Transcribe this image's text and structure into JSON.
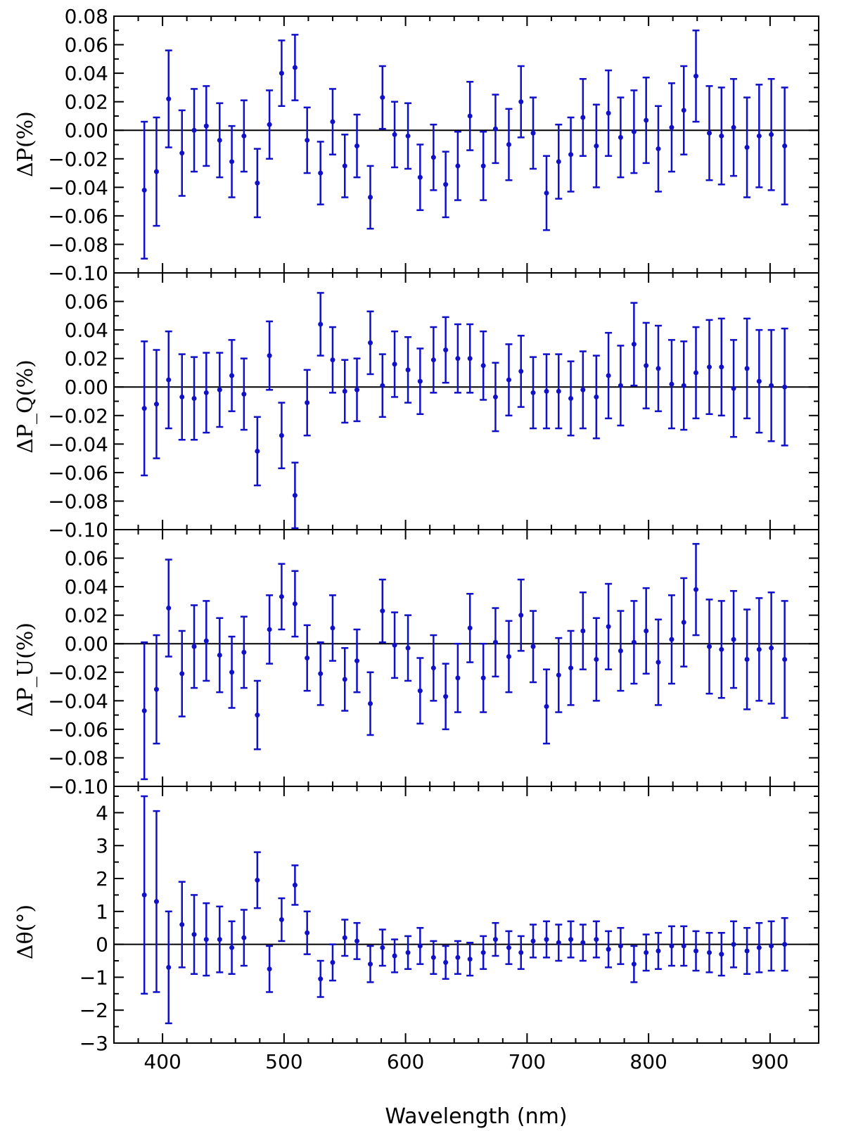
{
  "chart_data": [
    {
      "type": "scatter",
      "panel": "dP",
      "ylabel": "ΔP(%)",
      "xlabel": "",
      "xlim": [
        360,
        940
      ],
      "ylim": [
        -0.1,
        0.08
      ],
      "yticks": [
        -0.1,
        -0.08,
        -0.06,
        -0.04,
        -0.02,
        0.0,
        0.02,
        0.04,
        0.06,
        0.08
      ],
      "ytick_labels": [
        "−0.10",
        "−0.08",
        "−0.06",
        "−0.04",
        "−0.02",
        "0.00",
        "0.02",
        "0.04",
        "0.06",
        "0.08"
      ],
      "zero_line": true,
      "color": "#1010c8",
      "x": [
        385,
        395,
        405,
        416,
        426,
        436,
        447,
        457,
        467,
        478,
        488,
        498,
        509,
        519,
        530,
        540,
        550,
        560,
        571,
        581,
        591,
        602,
        612,
        623,
        633,
        643,
        653,
        664,
        674,
        685,
        695,
        705,
        716,
        726,
        736,
        746,
        757,
        767,
        777,
        788,
        798,
        808,
        819,
        829,
        839,
        850,
        860,
        870,
        881,
        891,
        901,
        912
      ],
      "y": [
        -0.042,
        -0.029,
        0.022,
        -0.016,
        0.0,
        0.003,
        -0.007,
        -0.022,
        -0.004,
        -0.037,
        0.004,
        0.04,
        0.044,
        -0.007,
        -0.03,
        0.006,
        -0.025,
        -0.011,
        -0.047,
        0.023,
        -0.003,
        -0.004,
        -0.033,
        -0.019,
        -0.038,
        -0.025,
        0.01,
        -0.025,
        0.001,
        -0.01,
        0.02,
        -0.002,
        -0.044,
        -0.022,
        -0.017,
        0.009,
        -0.011,
        0.012,
        -0.005,
        -0.001,
        0.007,
        -0.013,
        0.002,
        0.014,
        0.038,
        -0.002,
        -0.004,
        0.002,
        -0.012,
        -0.004,
        -0.003,
        -0.011
      ],
      "yerr": [
        0.048,
        0.038,
        0.034,
        0.03,
        0.029,
        0.028,
        0.026,
        0.025,
        0.025,
        0.024,
        0.024,
        0.023,
        0.023,
        0.023,
        0.022,
        0.023,
        0.022,
        0.022,
        0.022,
        0.022,
        0.023,
        0.023,
        0.023,
        0.023,
        0.023,
        0.024,
        0.024,
        0.024,
        0.024,
        0.025,
        0.025,
        0.025,
        0.026,
        0.026,
        0.026,
        0.027,
        0.029,
        0.03,
        0.028,
        0.029,
        0.03,
        0.03,
        0.031,
        0.031,
        0.032,
        0.033,
        0.034,
        0.034,
        0.035,
        0.036,
        0.039,
        0.041
      ]
    },
    {
      "type": "scatter",
      "panel": "dPQ",
      "ylabel": "ΔP_Q(%)",
      "xlabel": "",
      "xlim": [
        360,
        940
      ],
      "ylim": [
        -0.1,
        0.08
      ],
      "yticks": [
        -0.1,
        -0.08,
        -0.06,
        -0.04,
        -0.02,
        0.0,
        0.02,
        0.04,
        0.06
      ],
      "ytick_labels": [
        "−0.10",
        "−0.08",
        "−0.06",
        "−0.04",
        "−0.02",
        "0.00",
        "0.02",
        "0.04",
        "0.06"
      ],
      "zero_line": true,
      "color": "#1010c8",
      "x": [
        385,
        395,
        405,
        416,
        426,
        436,
        447,
        457,
        467,
        478,
        488,
        498,
        509,
        519,
        530,
        540,
        550,
        560,
        571,
        581,
        591,
        602,
        612,
        623,
        633,
        643,
        653,
        664,
        674,
        685,
        695,
        705,
        716,
        726,
        736,
        746,
        757,
        767,
        777,
        788,
        798,
        808,
        819,
        829,
        839,
        850,
        860,
        870,
        881,
        891,
        901,
        912
      ],
      "y": [
        -0.015,
        -0.012,
        0.005,
        -0.007,
        -0.008,
        -0.004,
        -0.002,
        0.008,
        -0.005,
        -0.045,
        0.022,
        -0.034,
        -0.076,
        -0.011,
        0.044,
        0.019,
        -0.003,
        -0.002,
        0.031,
        0.001,
        0.016,
        0.012,
        0.004,
        0.019,
        0.026,
        0.02,
        0.02,
        0.015,
        -0.007,
        0.005,
        0.011,
        -0.004,
        -0.003,
        -0.003,
        -0.008,
        -0.002,
        -0.007,
        0.008,
        0.001,
        0.03,
        0.015,
        0.013,
        0.002,
        0.001,
        0.01,
        0.014,
        0.014,
        -0.001,
        0.013,
        0.004,
        0.001,
        0.0
      ],
      "yerr": [
        0.047,
        0.038,
        0.034,
        0.03,
        0.029,
        0.028,
        0.026,
        0.025,
        0.025,
        0.024,
        0.024,
        0.023,
        0.023,
        0.023,
        0.022,
        0.023,
        0.022,
        0.022,
        0.022,
        0.022,
        0.023,
        0.023,
        0.023,
        0.023,
        0.023,
        0.024,
        0.024,
        0.024,
        0.024,
        0.025,
        0.025,
        0.025,
        0.026,
        0.026,
        0.026,
        0.027,
        0.029,
        0.03,
        0.028,
        0.029,
        0.03,
        0.03,
        0.031,
        0.031,
        0.032,
        0.033,
        0.034,
        0.034,
        0.035,
        0.036,
        0.039,
        0.041
      ]
    },
    {
      "type": "scatter",
      "panel": "dPU",
      "ylabel": "ΔP_U(%)",
      "xlabel": "",
      "xlim": [
        360,
        940
      ],
      "ylim": [
        -0.1,
        0.08
      ],
      "yticks": [
        -0.1,
        -0.08,
        -0.06,
        -0.04,
        -0.02,
        0.0,
        0.02,
        0.04,
        0.06
      ],
      "ytick_labels": [
        "−0.10",
        "−0.08",
        "−0.06",
        "−0.04",
        "−0.02",
        "0.00",
        "0.02",
        "0.04",
        "0.06"
      ],
      "zero_line": true,
      "color": "#1010c8",
      "x": [
        385,
        395,
        405,
        416,
        426,
        436,
        447,
        457,
        467,
        478,
        488,
        498,
        509,
        519,
        530,
        540,
        550,
        560,
        571,
        581,
        591,
        602,
        612,
        623,
        633,
        643,
        653,
        664,
        674,
        685,
        695,
        705,
        716,
        726,
        736,
        746,
        757,
        767,
        777,
        788,
        798,
        808,
        819,
        829,
        839,
        850,
        860,
        870,
        881,
        891,
        901,
        912
      ],
      "y": [
        -0.047,
        -0.032,
        0.025,
        -0.021,
        -0.002,
        0.002,
        -0.008,
        -0.02,
        -0.006,
        -0.05,
        0.01,
        0.033,
        0.028,
        -0.01,
        -0.021,
        0.011,
        -0.025,
        -0.012,
        -0.042,
        0.023,
        -0.001,
        -0.003,
        -0.033,
        -0.017,
        -0.037,
        -0.024,
        0.011,
        -0.024,
        0.001,
        -0.009,
        0.02,
        -0.002,
        -0.044,
        -0.022,
        -0.017,
        0.009,
        -0.011,
        0.012,
        -0.005,
        0.001,
        0.009,
        -0.013,
        0.003,
        0.015,
        0.038,
        -0.002,
        -0.004,
        0.003,
        -0.011,
        -0.004,
        -0.003,
        -0.011
      ],
      "yerr": [
        0.048,
        0.038,
        0.034,
        0.03,
        0.029,
        0.028,
        0.026,
        0.025,
        0.025,
        0.024,
        0.024,
        0.023,
        0.023,
        0.023,
        0.022,
        0.023,
        0.022,
        0.022,
        0.022,
        0.022,
        0.023,
        0.023,
        0.023,
        0.023,
        0.023,
        0.024,
        0.024,
        0.024,
        0.024,
        0.025,
        0.025,
        0.025,
        0.026,
        0.026,
        0.026,
        0.027,
        0.029,
        0.03,
        0.028,
        0.029,
        0.03,
        0.03,
        0.031,
        0.031,
        0.032,
        0.033,
        0.034,
        0.034,
        0.035,
        0.036,
        0.039,
        0.041
      ]
    },
    {
      "type": "scatter",
      "panel": "dTheta",
      "ylabel": "Δθ(°)",
      "xlabel": "Wavelength (nm)",
      "xlim": [
        360,
        940
      ],
      "ylim": [
        -3,
        4.8
      ],
      "yticks": [
        -3,
        -2,
        -1,
        0,
        1,
        2,
        3,
        4
      ],
      "ytick_labels": [
        "−3",
        "−2",
        "−1",
        "0",
        "1",
        "2",
        "3",
        "4"
      ],
      "xticks": [
        400,
        500,
        600,
        700,
        800,
        900
      ],
      "xtick_labels": [
        "400",
        "500",
        "600",
        "700",
        "800",
        "900"
      ],
      "zero_line": true,
      "color": "#1010c8",
      "x": [
        385,
        395,
        405,
        416,
        426,
        436,
        447,
        457,
        467,
        478,
        488,
        498,
        509,
        519,
        530,
        540,
        550,
        560,
        571,
        581,
        591,
        602,
        612,
        623,
        633,
        643,
        653,
        664,
        674,
        685,
        695,
        705,
        716,
        726,
        736,
        746,
        757,
        767,
        777,
        788,
        798,
        808,
        819,
        829,
        839,
        850,
        860,
        870,
        881,
        891,
        901,
        912
      ],
      "y": [
        1.5,
        1.3,
        -0.7,
        0.6,
        0.3,
        0.15,
        0.15,
        -0.1,
        0.2,
        1.95,
        -0.75,
        0.75,
        1.8,
        0.35,
        -1.05,
        -0.55,
        0.2,
        0.1,
        -0.6,
        -0.1,
        -0.35,
        -0.25,
        -0.05,
        -0.4,
        -0.55,
        -0.4,
        -0.45,
        -0.25,
        0.15,
        -0.1,
        -0.25,
        0.1,
        0.15,
        0.05,
        0.15,
        0.05,
        0.15,
        -0.15,
        -0.05,
        -0.6,
        -0.25,
        -0.2,
        -0.05,
        -0.05,
        -0.2,
        -0.25,
        -0.3,
        0.0,
        -0.2,
        -0.1,
        -0.05,
        0.0
      ],
      "yerr": [
        3.0,
        2.75,
        1.7,
        1.3,
        1.2,
        1.1,
        1.0,
        0.8,
        0.85,
        0.85,
        0.7,
        0.65,
        0.6,
        0.65,
        0.55,
        0.55,
        0.55,
        0.55,
        0.55,
        0.55,
        0.5,
        0.5,
        0.55,
        0.5,
        0.5,
        0.5,
        0.5,
        0.5,
        0.5,
        0.5,
        0.5,
        0.5,
        0.55,
        0.55,
        0.55,
        0.55,
        0.55,
        0.55,
        0.55,
        0.55,
        0.55,
        0.55,
        0.6,
        0.6,
        0.6,
        0.6,
        0.65,
        0.7,
        0.7,
        0.75,
        0.75,
        0.8
      ]
    }
  ]
}
